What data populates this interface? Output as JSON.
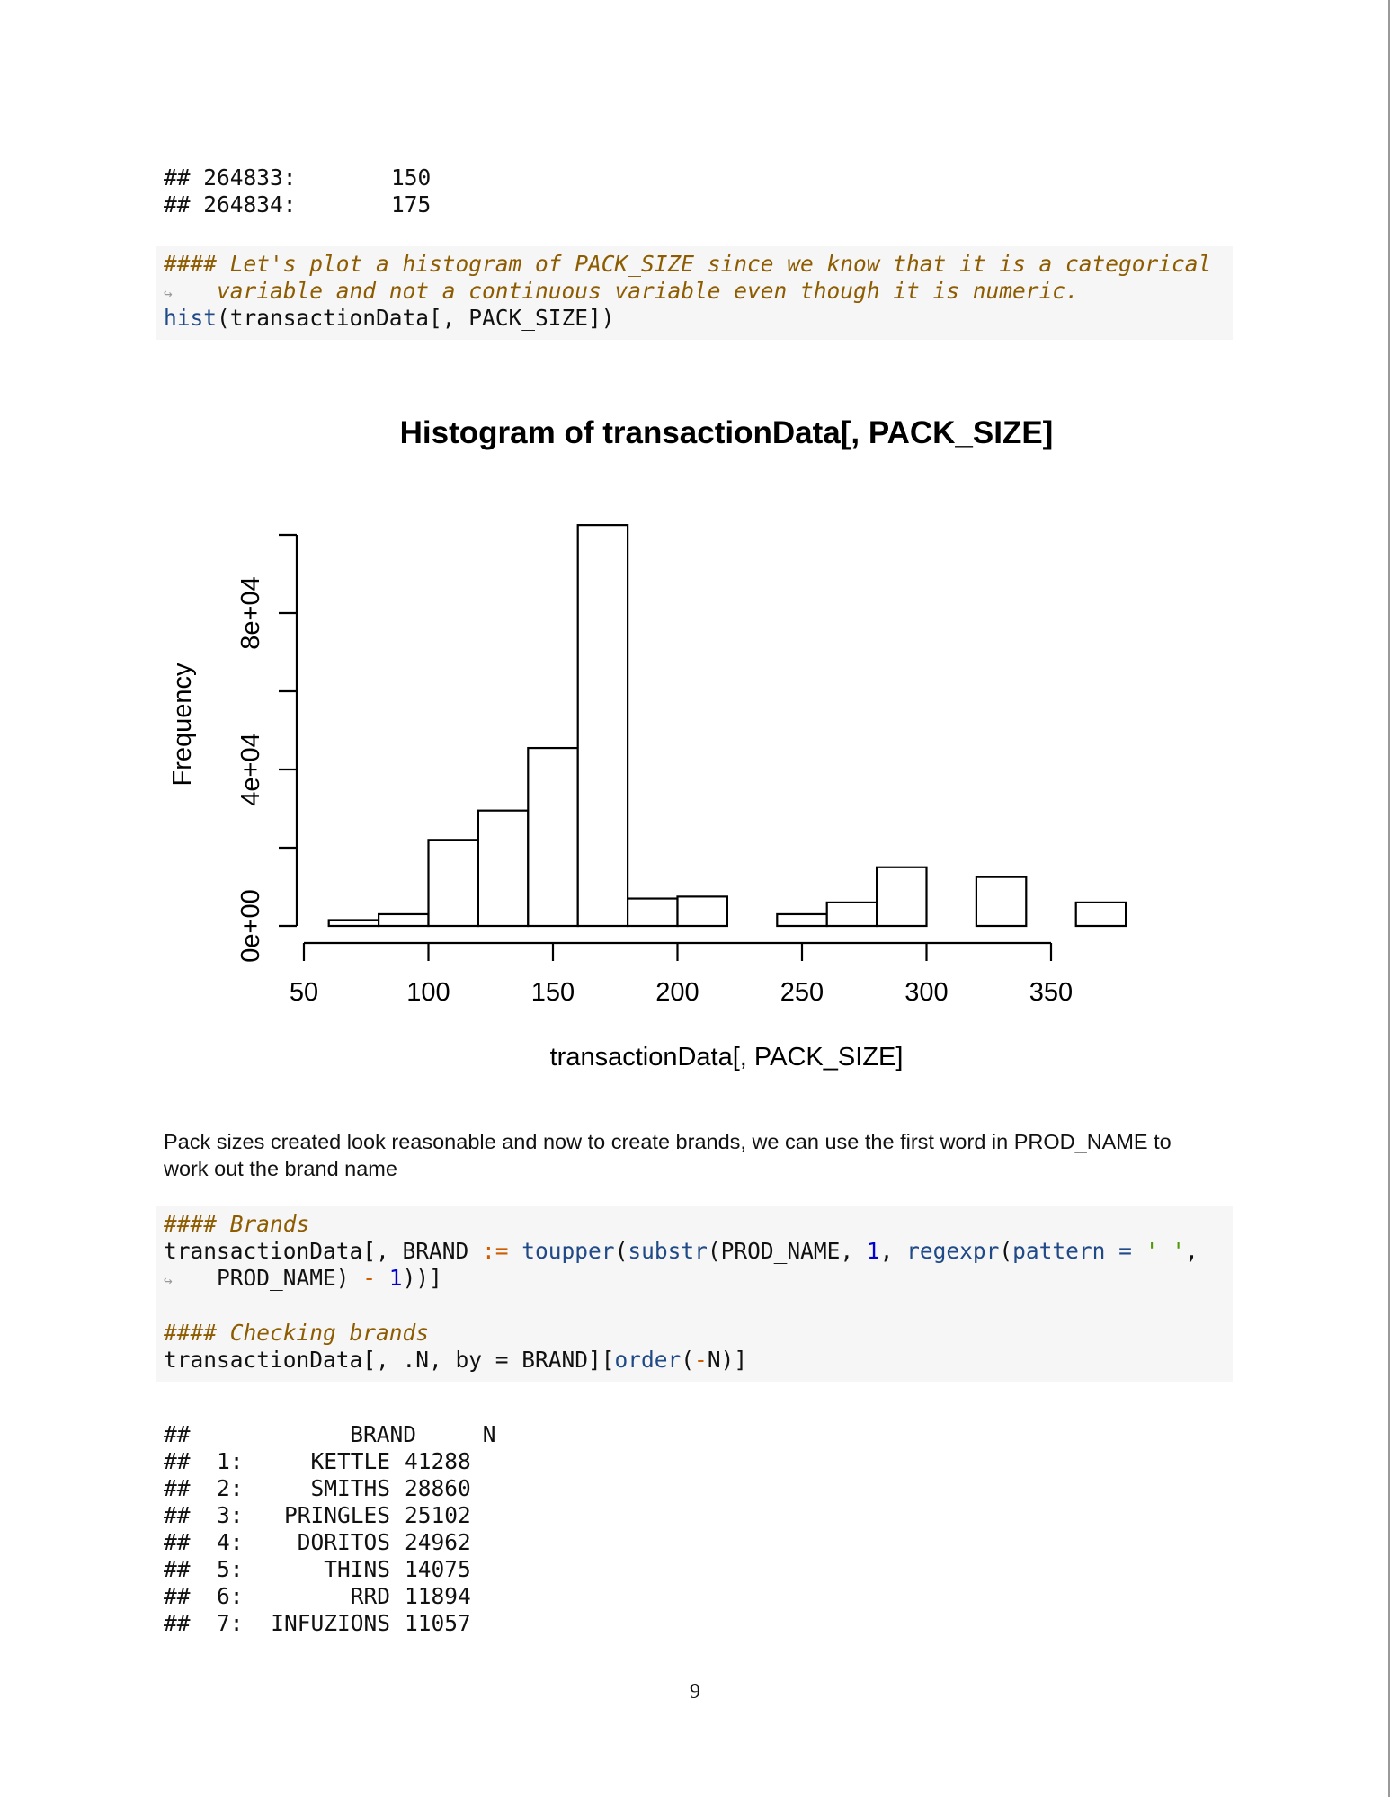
{
  "top_output": [
    {
      "prefix": "## 264833:",
      "value": "150"
    },
    {
      "prefix": "## 264834:",
      "value": "175"
    }
  ],
  "code_block_1": {
    "comment_line1": "#### Let's plot a histogram of PACK_SIZE since we know that it is a categorical",
    "comment_line2": "variable and not a continuous variable even though it is numeric.",
    "call_fn": "hist",
    "call_args": "(transactionData[, PACK_SIZE])"
  },
  "continuation_arrow": "↪",
  "chart_data": {
    "type": "bar",
    "title": "Histogram of transactionData[, PACK_SIZE]",
    "xlabel": "transactionData[, PACK_SIZE]",
    "ylabel": "Frequency",
    "bins": [
      {
        "from": 60,
        "to": 80,
        "count": 1500
      },
      {
        "from": 80,
        "to": 100,
        "count": 3000
      },
      {
        "from": 100,
        "to": 120,
        "count": 22000
      },
      {
        "from": 120,
        "to": 140,
        "count": 29500
      },
      {
        "from": 140,
        "to": 160,
        "count": 45500
      },
      {
        "from": 160,
        "to": 180,
        "count": 102500
      },
      {
        "from": 180,
        "to": 200,
        "count": 7000
      },
      {
        "from": 200,
        "to": 220,
        "count": 7500
      },
      {
        "from": 220,
        "to": 240,
        "count": 0
      },
      {
        "from": 240,
        "to": 260,
        "count": 3000
      },
      {
        "from": 260,
        "to": 280,
        "count": 6000
      },
      {
        "from": 280,
        "to": 300,
        "count": 15000
      },
      {
        "from": 300,
        "to": 320,
        "count": 0
      },
      {
        "from": 320,
        "to": 340,
        "count": 12500
      },
      {
        "from": 340,
        "to": 360,
        "count": 0
      },
      {
        "from": 360,
        "to": 380,
        "count": 6000
      }
    ],
    "x_ticks": [
      50,
      100,
      150,
      200,
      250,
      300,
      350
    ],
    "x_tick_labels": [
      "50",
      "100",
      "150",
      "200",
      "250",
      "300",
      "350"
    ],
    "y_ticks": [
      0,
      20000,
      40000,
      60000,
      80000,
      100000
    ],
    "y_tick_labels": [
      "0e+00",
      "",
      "4e+04",
      "",
      "8e+04",
      ""
    ],
    "xlim": [
      50,
      380
    ],
    "ylim": [
      0,
      100000
    ],
    "grid": false
  },
  "prose": {
    "line1": "Pack sizes created look reasonable and now to create brands, we can use the first word in PROD_NAME to",
    "line2": "work out the brand name"
  },
  "code_block_2": {
    "comment_brands": "#### Brands",
    "line2_a": "transactionData[, BRAND ",
    "line2_op": ":=",
    "line2_fn1": "toupper",
    "line2_b": "(",
    "line2_fn2": "substr",
    "line2_c": "(PROD_NAME, ",
    "line2_num": "1",
    "line2_d": ", ",
    "line2_fn3": "regexpr",
    "line2_e": "(",
    "line2_arg": "pattern =",
    "line2_str": "' '",
    "line2_f": ",",
    "line3_a": "PROD_NAME) ",
    "line3_op": "-",
    "line3_num": "1",
    "line3_b": "))]",
    "comment_checking": "#### Checking brands",
    "line5_a": "transactionData[, .N, by = BRAND][",
    "line5_fn": "order",
    "line5_b": "(",
    "line5_op": "-",
    "line5_c": "N)]"
  },
  "brand_table": {
    "header_prefix": "##",
    "header": "BRAND     N",
    "rows": [
      {
        "idx": "1:",
        "brand": "KETTLE",
        "n": "41288"
      },
      {
        "idx": "2:",
        "brand": "SMITHS",
        "n": "28860"
      },
      {
        "idx": "3:",
        "brand": "PRINGLES",
        "n": "25102"
      },
      {
        "idx": "4:",
        "brand": "DORITOS",
        "n": "24962"
      },
      {
        "idx": "5:",
        "brand": "THINS",
        "n": "14075"
      },
      {
        "idx": "6:",
        "brand": "RRD",
        "n": "11894"
      },
      {
        "idx": "7:",
        "brand": "INFUZIONS",
        "n": "11057"
      }
    ]
  },
  "page_number": "9"
}
